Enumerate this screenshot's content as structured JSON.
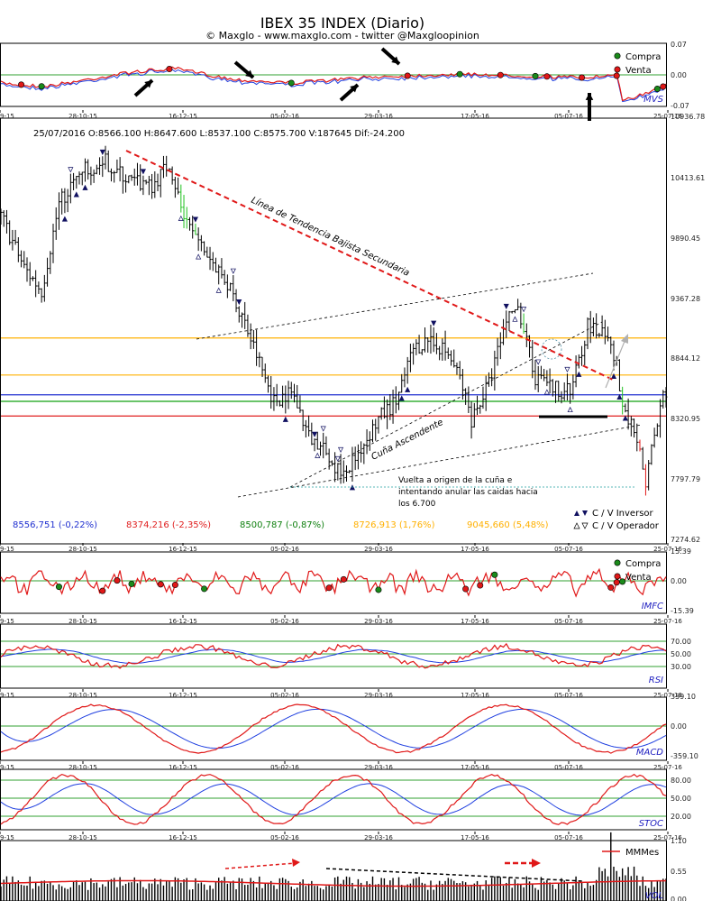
{
  "title": "IBEX 35 INDEX (Diario)",
  "subtitle": "© Maxglo - www.maxglo.com - twitter @Maxgloopinion",
  "x_ticks": [
    "9-15",
    "28-10-15",
    "16-12-15",
    "05-02-16",
    "29-03-16",
    "17-05-16",
    "05-07-16",
    "25-07-16"
  ],
  "legend_buy": "Compra",
  "legend_sell": "Venta",
  "colors": {
    "buy": "#1a8a1a",
    "sell": "#e01818",
    "trend": "#e01818",
    "orange": "#ffb000",
    "blue_level": "#2030d0",
    "green_level": "#10a010",
    "red_level": "#e02020",
    "signal": "#2020e0"
  },
  "chart_data": [
    {
      "type": "line",
      "name": "MVS",
      "panel_label": "MVS",
      "y_ticks": [
        "0.07",
        "0.00",
        "-0.07"
      ],
      "ylim": [
        -0.07,
        0.07
      ]
    },
    {
      "type": "candlestick",
      "name": "IBEX 35",
      "header": {
        "date": "25/07/2016",
        "open": "O:8566.100",
        "high": "H:8647.600",
        "low": "L:8537.100",
        "close": "C:8575.700",
        "volume": "V:187645",
        "diff": "Dif:-24.200"
      },
      "y_ticks": [
        "10936.78",
        "10413.61",
        "9890.45",
        "9367.28",
        "8844.12",
        "8320.95",
        "7797.79",
        "7274.62"
      ],
      "ylim": [
        7274.62,
        10936.78
      ],
      "levels": [
        {
          "label": "8556,751 (-0,22%)",
          "value": 8556.751,
          "color": "#2030d0"
        },
        {
          "label": "8374,216 (-2,35%)",
          "value": 8374.216,
          "color": "#e02020"
        },
        {
          "label": "8500,787 (-0,87%)",
          "value": 8500.787,
          "color": "#10a010"
        },
        {
          "label": "8726,913 (1,76%)",
          "value": 8726.913,
          "color": "#ffb000"
        },
        {
          "label": "9045,660 (5,48%)",
          "value": 9045.66,
          "color": "#ffb000"
        }
      ],
      "annotations": {
        "trendline": "Línea de Tendencia Bajista Secundaria",
        "wedge": "Cuña Ascendente",
        "note_lines": [
          "Vuelta a origen de la cuña e",
          "intentando anular las caidas hacia",
          "los 6.700"
        ]
      },
      "legend": [
        "C / V Inversor",
        "C / V Operador"
      ]
    },
    {
      "type": "line",
      "name": "IMFC",
      "panel_label": "IMFC",
      "y_ticks": [
        "15.39",
        "0.00",
        "-15.39"
      ],
      "ylim": [
        -15.39,
        15.39
      ]
    },
    {
      "type": "line",
      "name": "RSI",
      "panel_label": "RSI",
      "y_ticks": [
        "70.00",
        "50.00",
        "30.00"
      ],
      "ylim": [
        0,
        100
      ]
    },
    {
      "type": "line",
      "name": "MACD",
      "panel_label": "MACD",
      "y_ticks": [
        "359.10",
        "0.00",
        "-359.10"
      ],
      "ylim": [
        -359.1,
        359.1
      ]
    },
    {
      "type": "line",
      "name": "STOC",
      "panel_label": "STOC",
      "y_ticks": [
        "80.00",
        "50.00",
        "20.00"
      ],
      "ylim": [
        0,
        100
      ]
    },
    {
      "type": "bar",
      "name": "VOL",
      "panel_label": "VOL",
      "legend": "MMMes",
      "y_ticks": [
        "1.10",
        "0.55",
        "0.00"
      ],
      "ylim": [
        0,
        1.1
      ]
    }
  ]
}
